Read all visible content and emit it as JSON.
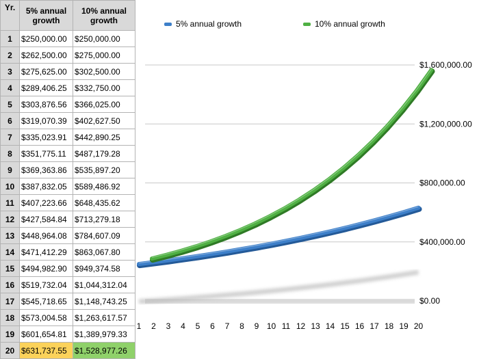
{
  "table": {
    "headers": [
      "Yr.",
      "5% annual growth",
      "10% annual growth"
    ],
    "rows": [
      {
        "yr": "1",
        "a": "$250,000.00",
        "b": "$250,000.00"
      },
      {
        "yr": "2",
        "a": "$262,500.00",
        "b": "$275,000.00"
      },
      {
        "yr": "3",
        "a": "$275,625.00",
        "b": "$302,500.00"
      },
      {
        "yr": "4",
        "a": "$289,406.25",
        "b": "$332,750.00"
      },
      {
        "yr": "5",
        "a": "$303,876.56",
        "b": "$366,025.00"
      },
      {
        "yr": "6",
        "a": "$319,070.39",
        "b": "$402,627.50"
      },
      {
        "yr": "7",
        "a": "$335,023.91",
        "b": "$442,890.25"
      },
      {
        "yr": "8",
        "a": "$351,775.11",
        "b": "$487,179.28"
      },
      {
        "yr": "9",
        "a": "$369,363.86",
        "b": "$535,897.20"
      },
      {
        "yr": "10",
        "a": "$387,832.05",
        "b": "$589,486.92"
      },
      {
        "yr": "11",
        "a": "$407,223.66",
        "b": "$648,435.62"
      },
      {
        "yr": "12",
        "a": "$427,584.84",
        "b": "$713,279.18"
      },
      {
        "yr": "13",
        "a": "$448,964.08",
        "b": "$784,607.09"
      },
      {
        "yr": "14",
        "a": "$471,412.29",
        "b": "$863,067.80"
      },
      {
        "yr": "15",
        "a": "$494,982.90",
        "b": "$949,374.58"
      },
      {
        "yr": "16",
        "a": "$519,732.04",
        "b": "$1,044,312.04"
      },
      {
        "yr": "17",
        "a": "$545,718.65",
        "b": "$1,148,743.25"
      },
      {
        "yr": "18",
        "a": "$573,004.58",
        "b": "$1,263,617.57"
      },
      {
        "yr": "19",
        "a": "$601,654.81",
        "b": "$1,389,979.33"
      },
      {
        "yr": "20",
        "a": "$631,737.55",
        "b": "$1,528,977.26"
      }
    ],
    "highlight_colors": {
      "a": "#fbd25a",
      "b": "#8fd16a"
    },
    "header_bg": "#d9d9d9"
  },
  "chart_data": {
    "type": "line",
    "title": "",
    "xlabel": "",
    "ylabel": "",
    "x": [
      1,
      2,
      3,
      4,
      5,
      6,
      7,
      8,
      9,
      10,
      11,
      12,
      13,
      14,
      15,
      16,
      17,
      18,
      19,
      20
    ],
    "x_tick_labels": [
      "1",
      "2",
      "3",
      "4",
      "5",
      "6",
      "7",
      "8",
      "9",
      "10",
      "11",
      "12",
      "13",
      "14",
      "15",
      "16",
      "17",
      "18",
      "19",
      "20"
    ],
    "y_tick_labels": [
      "$0.00",
      "$400,000.00",
      "$800,000.00",
      "$1,200,000.00",
      "$1,600,000.00"
    ],
    "ylim": [
      0,
      1600000
    ],
    "grid": true,
    "legend_position": "top",
    "style": "3d-ribbon",
    "series": [
      {
        "name": "5% annual growth",
        "color": "#3d7fc9",
        "values": [
          250000,
          262500,
          275625,
          289406.25,
          303876.56,
          319070.39,
          335023.91,
          351775.11,
          369363.86,
          387832.05,
          407223.66,
          427584.84,
          448964.08,
          471412.29,
          494982.9,
          519732.04,
          545718.65,
          573004.58,
          601654.81,
          631737.55
        ]
      },
      {
        "name": "10% annual growth",
        "color": "#4fb043",
        "values": [
          250000,
          275000,
          302500,
          332750,
          366025,
          402627.5,
          442890.25,
          487179.28,
          535897.2,
          589486.92,
          648435.62,
          713279.18,
          784607.09,
          863067.8,
          949374.58,
          1044312.04,
          1148743.25,
          1263617.57,
          1389979.33,
          1528977.26
        ]
      }
    ]
  }
}
